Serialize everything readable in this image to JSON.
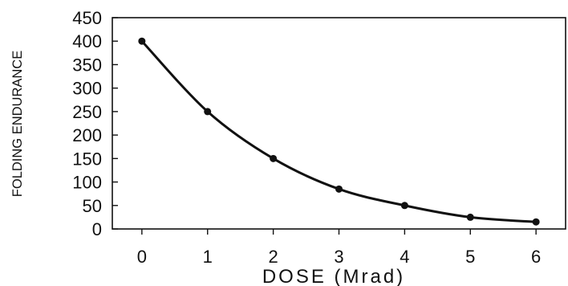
{
  "chart_data": {
    "type": "line",
    "xlabel": "DOSE (Mrad)",
    "ylabel": "FOLDING ENDURANCE",
    "xlim": [
      -0.45,
      6.45
    ],
    "ylim": [
      0,
      450
    ],
    "x_ticks": [
      0,
      1,
      2,
      3,
      4,
      5,
      6
    ],
    "y_ticks": [
      0,
      50,
      100,
      150,
      200,
      250,
      300,
      350,
      400,
      450
    ],
    "x_tick_labels": [
      "0",
      "1",
      "2",
      "3",
      "4",
      "5",
      "6"
    ],
    "y_tick_labels": [
      "0",
      "50",
      "100",
      "150",
      "200",
      "250",
      "300",
      "350",
      "400",
      "450"
    ],
    "grid": false,
    "series": [
      {
        "x": [
          0,
          1,
          2,
          3,
          4,
          5,
          6
        ],
        "y": [
          400,
          250,
          150,
          85,
          50,
          25,
          15
        ],
        "color": "#111111",
        "markers": true,
        "smooth": true
      }
    ]
  }
}
